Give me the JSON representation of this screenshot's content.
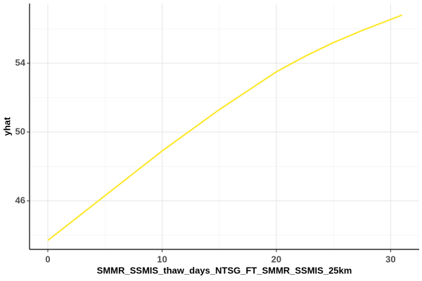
{
  "chart_data": {
    "type": "line",
    "x_label": "SMMR_SSMIS_thaw_days_NTSG_FT_SMMR_SSMIS_25km",
    "y_label": "yhat",
    "x": [
      0,
      2.5,
      5,
      7.5,
      10,
      12.5,
      15,
      17.5,
      20,
      22.5,
      25,
      27.5,
      31
    ],
    "series": [
      {
        "name": "yhat",
        "color": "#fde725",
        "values": [
          43.7,
          45.0,
          46.3,
          47.6,
          48.9,
          50.1,
          51.3,
          52.4,
          53.5,
          54.4,
          55.2,
          55.9,
          56.8
        ]
      }
    ],
    "xlim": [
      -1.6,
      32.5
    ],
    "xticks": [
      0,
      10,
      20,
      30
    ],
    "ylim": [
      43.18,
      57.47
    ],
    "yticks": [
      46,
      50,
      54
    ],
    "grid": true
  }
}
